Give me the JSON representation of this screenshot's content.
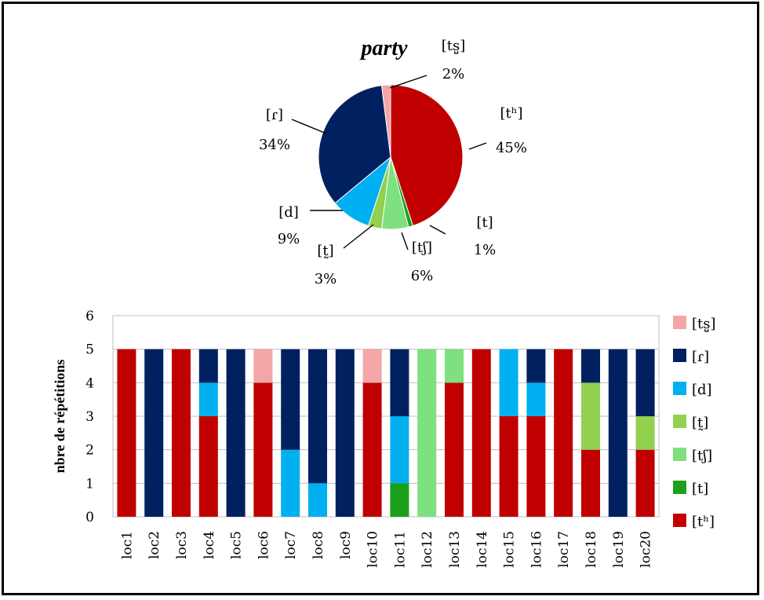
{
  "chart_data": [
    {
      "type": "pie",
      "title": "party",
      "slices": [
        {
          "label": "[tʰ]",
          "value_label": "45%",
          "value": 45,
          "color": "#c00000"
        },
        {
          "label": "[t]",
          "value_label": "1%",
          "value": 1,
          "color": "#1aa01a"
        },
        {
          "label": "[tʃ]",
          "value_label": "6%",
          "value": 6,
          "color": "#7ee07e"
        },
        {
          "label": "[t̰]",
          "value_label": "3%",
          "value": 3,
          "color": "#92d050"
        },
        {
          "label": "[d]",
          "value_label": "9%",
          "value": 9,
          "color": "#00b0f0"
        },
        {
          "label": "[ɾ]",
          "value_label": "34%",
          "value": 34,
          "color": "#002060"
        },
        {
          "label": "[ts̺]",
          "value_label": "2%",
          "value": 2,
          "color": "#f4a6a6"
        }
      ]
    },
    {
      "type": "bar",
      "stacked": true,
      "ylabel": "nbre de répétitions",
      "ylim": [
        0,
        6
      ],
      "yticks": [
        "0",
        "1",
        "2",
        "3",
        "4",
        "5",
        "6"
      ],
      "grid": true,
      "legend_position": "right",
      "categories": [
        "loc1",
        "loc2",
        "loc3",
        "loc4",
        "loc5",
        "loc6",
        "loc7",
        "loc8",
        "loc9",
        "loc10",
        "loc11",
        "loc12",
        "loc13",
        "loc14",
        "loc15",
        "loc16",
        "loc17",
        "loc18",
        "loc19",
        "loc20"
      ],
      "series": [
        {
          "name": "[tʰ]",
          "color": "#c00000",
          "values": [
            5,
            0,
            5,
            3,
            0,
            4,
            0,
            0,
            0,
            4,
            0,
            0,
            4,
            5,
            3,
            3,
            5,
            2,
            0,
            2
          ]
        },
        {
          "name": "[t]",
          "color": "#1aa01a",
          "values": [
            0,
            0,
            0,
            0,
            0,
            0,
            0,
            0,
            0,
            0,
            1,
            0,
            0,
            0,
            0,
            0,
            0,
            0,
            0,
            0
          ]
        },
        {
          "name": "[tʃ]",
          "color": "#7ee07e",
          "values": [
            0,
            0,
            0,
            0,
            0,
            0,
            0,
            0,
            0,
            0,
            0,
            5,
            1,
            0,
            0,
            0,
            0,
            0,
            0,
            0
          ]
        },
        {
          "name": "[t̰]",
          "color": "#92d050",
          "values": [
            0,
            0,
            0,
            0,
            0,
            0,
            0,
            0,
            0,
            0,
            0,
            0,
            0,
            0,
            0,
            0,
            0,
            2,
            0,
            1
          ]
        },
        {
          "name": "[d]",
          "color": "#00b0f0",
          "values": [
            0,
            0,
            0,
            1,
            0,
            0,
            2,
            1,
            0,
            0,
            2,
            0,
            0,
            0,
            2,
            1,
            0,
            0,
            0,
            0
          ]
        },
        {
          "name": "[ɾ]",
          "color": "#002060",
          "values": [
            0,
            5,
            0,
            1,
            5,
            0,
            3,
            4,
            5,
            0,
            2,
            0,
            0,
            0,
            0,
            1,
            0,
            1,
            5,
            2
          ]
        },
        {
          "name": "[ts̺]",
          "color": "#f4a6a6",
          "values": [
            0,
            0,
            0,
            0,
            0,
            1,
            0,
            0,
            0,
            1,
            0,
            0,
            0,
            0,
            0,
            0,
            0,
            0,
            0,
            0
          ]
        }
      ],
      "legend_order": [
        "[ts̺]",
        "[ɾ]",
        "[d]",
        "[t̰]",
        "[tʃ]",
        "[t]",
        "[tʰ]"
      ]
    }
  ]
}
